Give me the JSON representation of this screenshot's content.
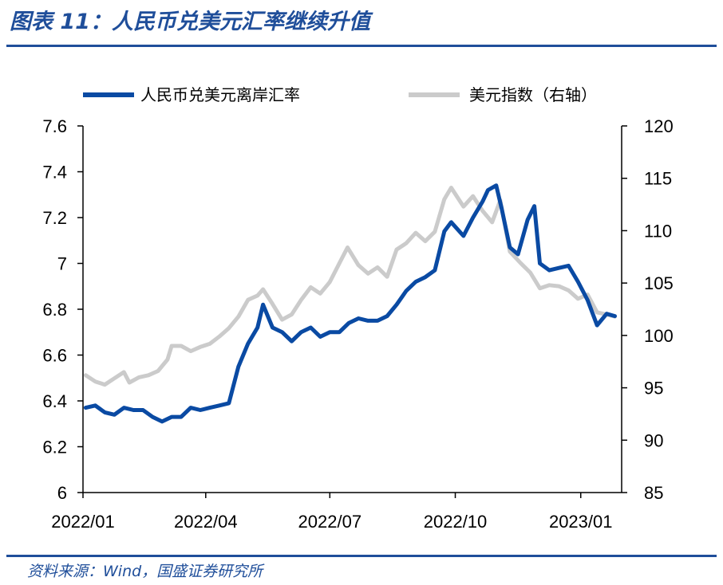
{
  "header": {
    "title": "图表 11：人民币兑美元汇率继续升值"
  },
  "footer": {
    "source": "资料来源：Wind，国盛证券研究所"
  },
  "chart_data": {
    "type": "line",
    "title": "图表 11：人民币兑美元汇率继续升值",
    "legend_placement": "top",
    "grid": false,
    "x_ticks": [
      "2022/01",
      "2022/04",
      "2022/07",
      "2022/10",
      "2023/01"
    ],
    "y_left": {
      "lim": [
        6,
        7.6
      ],
      "ticks": [
        "6",
        "6.2",
        "6.4",
        "6.6",
        "6.8",
        "7",
        "7.2",
        "7.4",
        "7.6"
      ]
    },
    "y_right": {
      "lim": [
        85,
        120
      ],
      "ticks": [
        "85",
        "90",
        "95",
        "100",
        "105",
        "110",
        "115",
        "120"
      ]
    },
    "series": [
      {
        "name": "人民币兑美元离岸汇率",
        "axis": "left",
        "color": "#0a4aa3",
        "points": [
          [
            "2022-01-03",
            6.37
          ],
          [
            "2022-01-10",
            6.38
          ],
          [
            "2022-01-17",
            6.35
          ],
          [
            "2022-01-24",
            6.34
          ],
          [
            "2022-01-31",
            6.37
          ],
          [
            "2022-02-07",
            6.36
          ],
          [
            "2022-02-14",
            6.36
          ],
          [
            "2022-02-21",
            6.33
          ],
          [
            "2022-02-28",
            6.31
          ],
          [
            "2022-03-07",
            6.33
          ],
          [
            "2022-03-14",
            6.33
          ],
          [
            "2022-03-21",
            6.37
          ],
          [
            "2022-03-28",
            6.36
          ],
          [
            "2022-04-04",
            6.37
          ],
          [
            "2022-04-11",
            6.38
          ],
          [
            "2022-04-18",
            6.39
          ],
          [
            "2022-04-25",
            6.55
          ],
          [
            "2022-05-02",
            6.65
          ],
          [
            "2022-05-09",
            6.72
          ],
          [
            "2022-05-13",
            6.82
          ],
          [
            "2022-05-20",
            6.72
          ],
          [
            "2022-05-27",
            6.7
          ],
          [
            "2022-06-03",
            6.66
          ],
          [
            "2022-06-10",
            6.7
          ],
          [
            "2022-06-17",
            6.72
          ],
          [
            "2022-06-24",
            6.68
          ],
          [
            "2022-07-01",
            6.7
          ],
          [
            "2022-07-08",
            6.7
          ],
          [
            "2022-07-15",
            6.74
          ],
          [
            "2022-07-22",
            6.76
          ],
          [
            "2022-07-29",
            6.75
          ],
          [
            "2022-08-05",
            6.75
          ],
          [
            "2022-08-12",
            6.77
          ],
          [
            "2022-08-19",
            6.82
          ],
          [
            "2022-08-26",
            6.88
          ],
          [
            "2022-09-02",
            6.92
          ],
          [
            "2022-09-09",
            6.94
          ],
          [
            "2022-09-16",
            6.97
          ],
          [
            "2022-09-23",
            7.14
          ],
          [
            "2022-09-28",
            7.18
          ],
          [
            "2022-10-07",
            7.12
          ],
          [
            "2022-10-14",
            7.2
          ],
          [
            "2022-10-21",
            7.27
          ],
          [
            "2022-10-25",
            7.32
          ],
          [
            "2022-10-31",
            7.34
          ],
          [
            "2022-11-04",
            7.24
          ],
          [
            "2022-11-10",
            7.07
          ],
          [
            "2022-11-16",
            7.04
          ],
          [
            "2022-11-23",
            7.19
          ],
          [
            "2022-11-28",
            7.25
          ],
          [
            "2022-12-02",
            7.0
          ],
          [
            "2022-12-09",
            6.97
          ],
          [
            "2022-12-16",
            6.98
          ],
          [
            "2022-12-23",
            6.99
          ],
          [
            "2022-12-30",
            6.92
          ],
          [
            "2023-01-06",
            6.84
          ],
          [
            "2023-01-13",
            6.73
          ],
          [
            "2023-01-20",
            6.78
          ],
          [
            "2023-01-26",
            6.77
          ]
        ]
      },
      {
        "name": "美元指数（右轴）",
        "axis": "right",
        "color": "#cbcbcb",
        "points": [
          [
            "2022-01-03",
            96.2
          ],
          [
            "2022-01-10",
            95.6
          ],
          [
            "2022-01-17",
            95.3
          ],
          [
            "2022-01-24",
            95.9
          ],
          [
            "2022-01-31",
            96.5
          ],
          [
            "2022-02-04",
            95.5
          ],
          [
            "2022-02-11",
            96.0
          ],
          [
            "2022-02-18",
            96.2
          ],
          [
            "2022-02-25",
            96.6
          ],
          [
            "2022-03-04",
            97.7
          ],
          [
            "2022-03-07",
            99.0
          ],
          [
            "2022-03-14",
            99.0
          ],
          [
            "2022-03-21",
            98.5
          ],
          [
            "2022-03-28",
            98.9
          ],
          [
            "2022-04-04",
            99.2
          ],
          [
            "2022-04-11",
            99.9
          ],
          [
            "2022-04-18",
            100.7
          ],
          [
            "2022-04-25",
            101.8
          ],
          [
            "2022-05-02",
            103.4
          ],
          [
            "2022-05-09",
            103.8
          ],
          [
            "2022-05-13",
            104.4
          ],
          [
            "2022-05-20",
            103.0
          ],
          [
            "2022-05-27",
            101.5
          ],
          [
            "2022-06-03",
            102.0
          ],
          [
            "2022-06-10",
            103.4
          ],
          [
            "2022-06-17",
            104.6
          ],
          [
            "2022-06-24",
            104.0
          ],
          [
            "2022-07-01",
            105.1
          ],
          [
            "2022-07-08",
            106.9
          ],
          [
            "2022-07-14",
            108.4
          ],
          [
            "2022-07-22",
            106.7
          ],
          [
            "2022-07-29",
            105.9
          ],
          [
            "2022-08-05",
            106.5
          ],
          [
            "2022-08-12",
            105.6
          ],
          [
            "2022-08-19",
            108.2
          ],
          [
            "2022-08-26",
            108.8
          ],
          [
            "2022-09-02",
            109.8
          ],
          [
            "2022-09-09",
            109.0
          ],
          [
            "2022-09-16",
            109.9
          ],
          [
            "2022-09-23",
            113.0
          ],
          [
            "2022-09-28",
            114.1
          ],
          [
            "2022-10-07",
            112.3
          ],
          [
            "2022-10-14",
            113.3
          ],
          [
            "2022-10-21",
            111.9
          ],
          [
            "2022-10-28",
            110.8
          ],
          [
            "2022-11-03",
            112.9
          ],
          [
            "2022-11-10",
            108.0
          ],
          [
            "2022-11-18",
            106.9
          ],
          [
            "2022-11-25",
            106.0
          ],
          [
            "2022-12-02",
            104.5
          ],
          [
            "2022-12-09",
            104.8
          ],
          [
            "2022-12-16",
            104.7
          ],
          [
            "2022-12-23",
            104.3
          ],
          [
            "2022-12-30",
            103.5
          ],
          [
            "2023-01-06",
            103.9
          ],
          [
            "2023-01-13",
            102.2
          ],
          [
            "2023-01-20",
            102.0
          ],
          [
            "2023-01-26",
            101.8
          ]
        ]
      }
    ]
  }
}
